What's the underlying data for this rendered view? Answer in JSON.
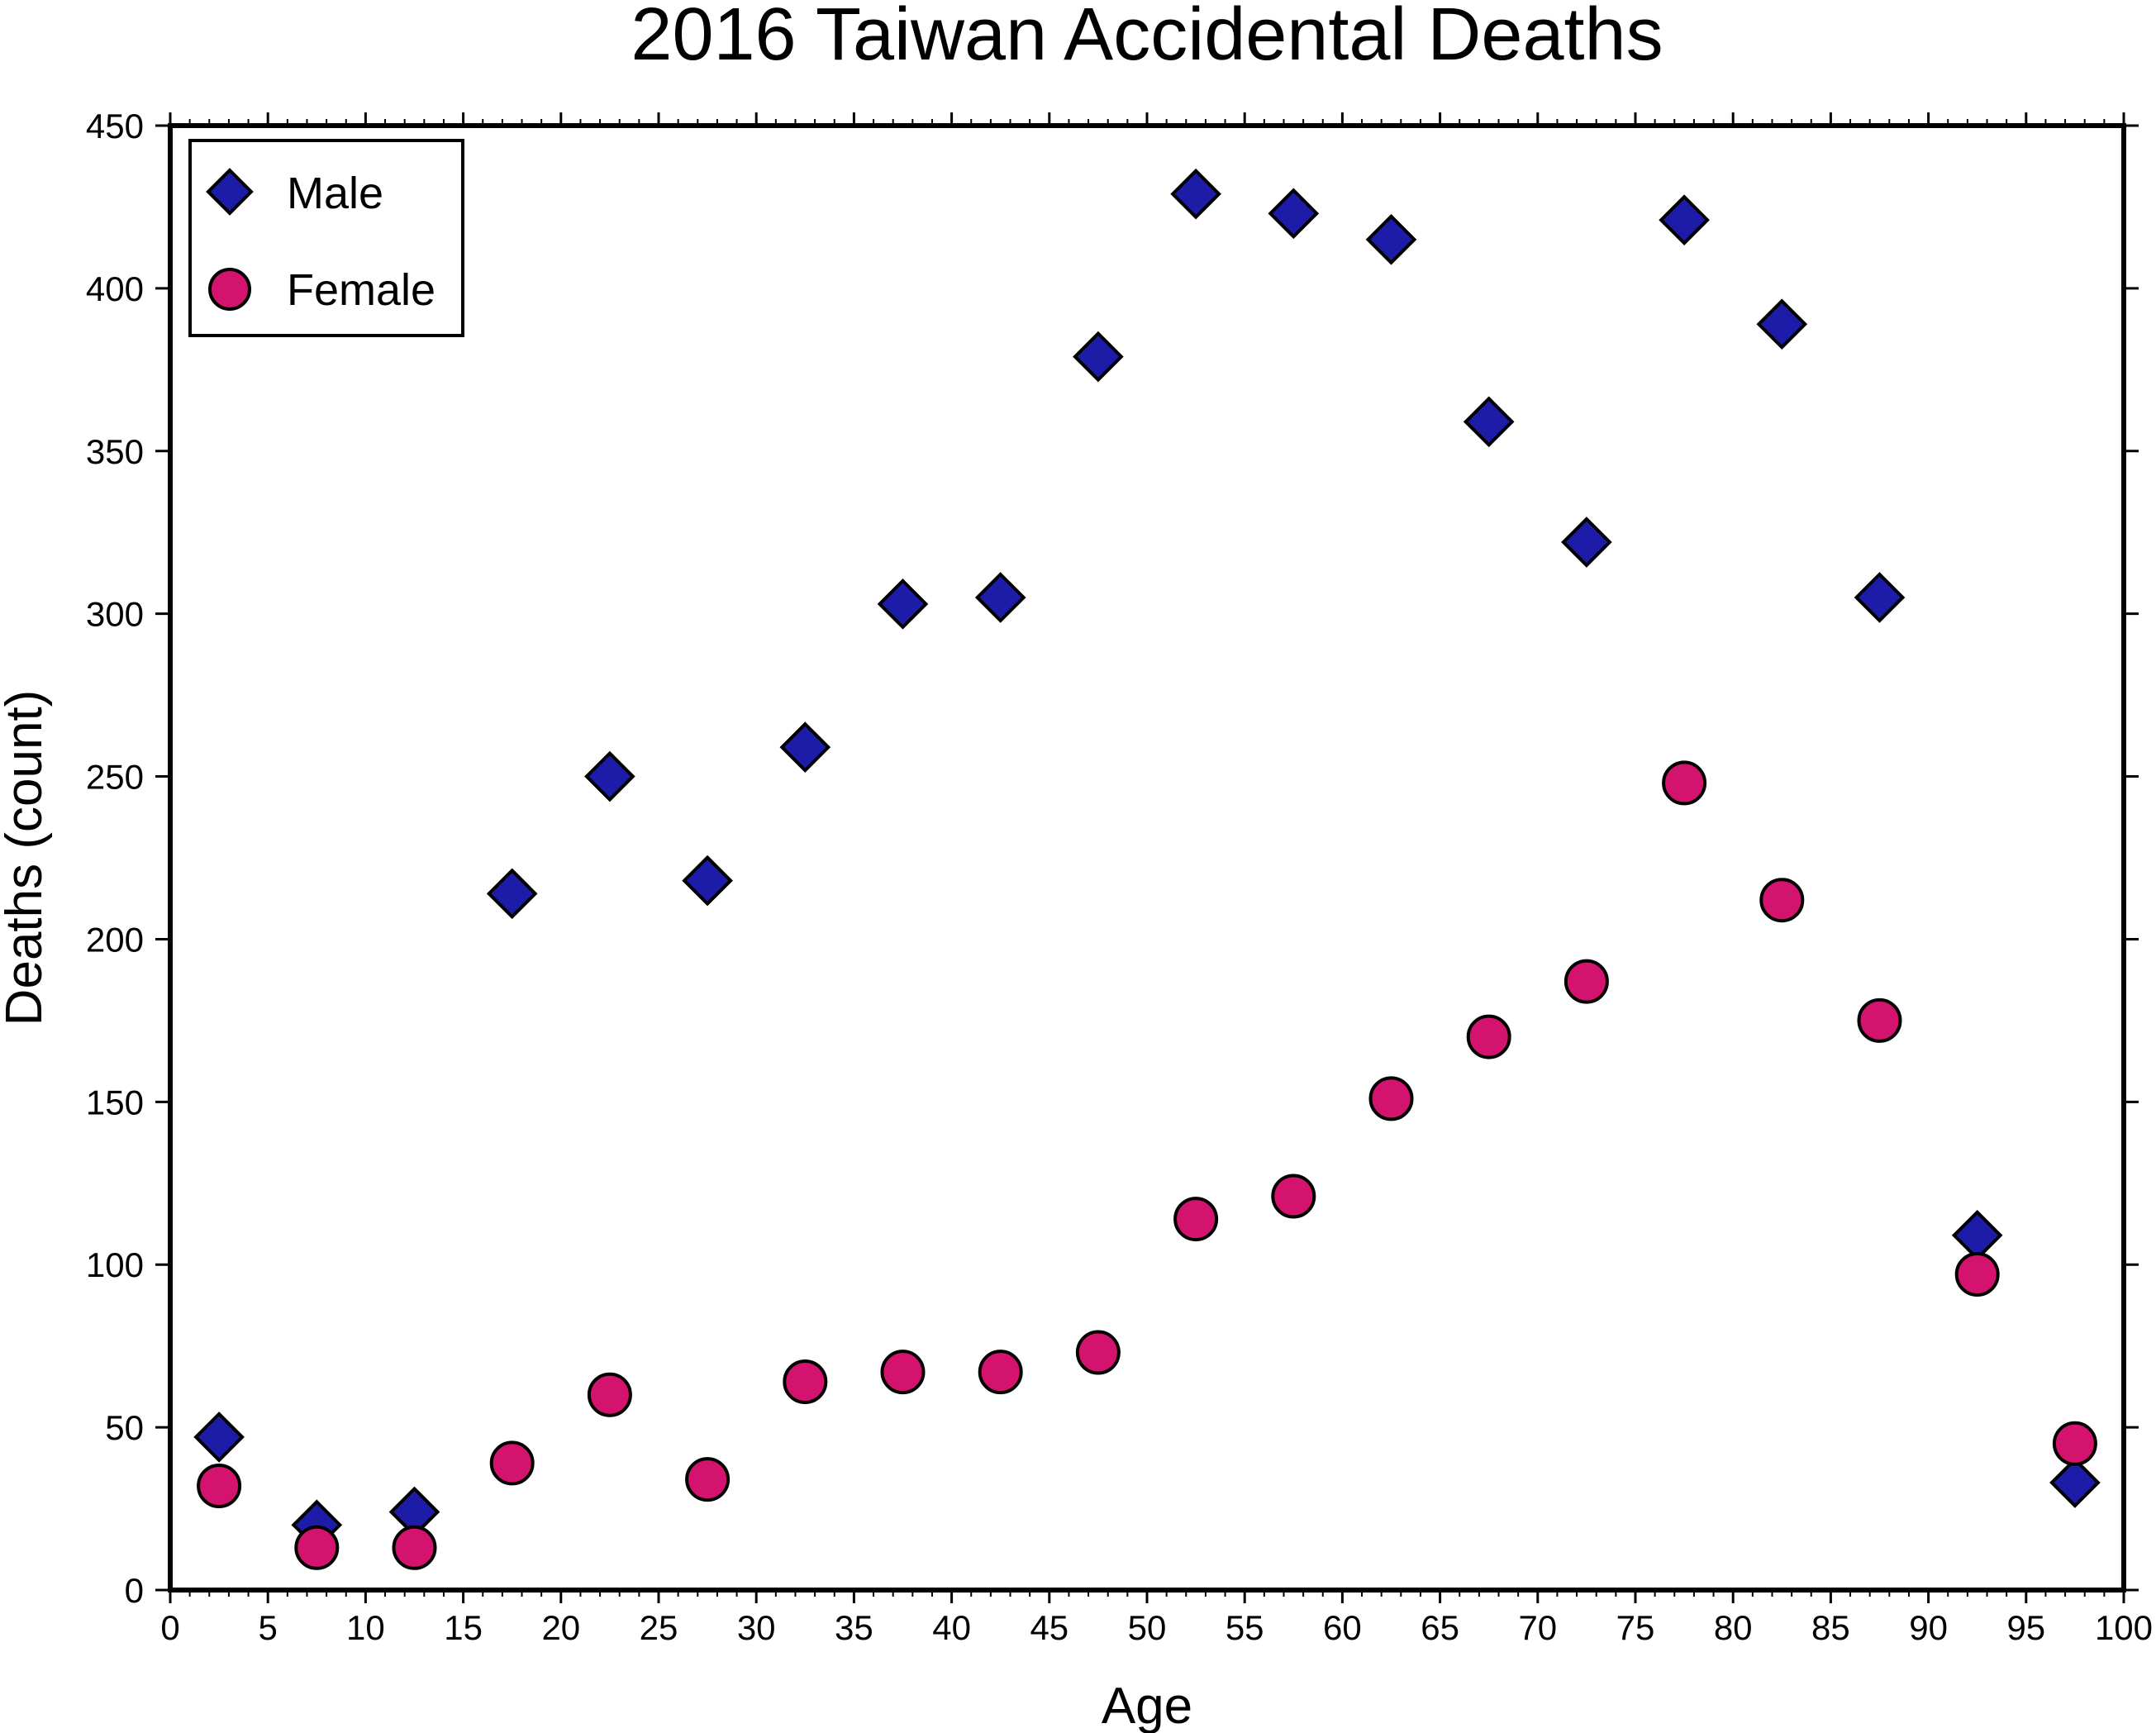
{
  "chart_data": {
    "type": "scatter",
    "title": "2016 Taiwan Accidental Deaths",
    "xlabel": "Age",
    "ylabel": "Deaths (count)",
    "xlim": [
      0,
      100
    ],
    "ylim": [
      0,
      450
    ],
    "xticks": [
      "0",
      "5",
      "10",
      "15",
      "20",
      "25",
      "30",
      "35",
      "40",
      "45",
      "50",
      "55",
      "60",
      "65",
      "70",
      "75",
      "80",
      "85",
      "90",
      "95",
      "100"
    ],
    "yticks": [
      "0",
      "50",
      "100",
      "150",
      "200",
      "250",
      "300",
      "350",
      "400",
      "450"
    ],
    "grid": false,
    "legend_position": "top-left",
    "series": [
      {
        "name": "Male",
        "marker": "diamond",
        "color": "#1c1ca8",
        "x": [
          2.5,
          7.5,
          12.5,
          17.5,
          22.5,
          27.5,
          32.5,
          37.5,
          42.5,
          47.5,
          52.5,
          57.5,
          62.5,
          67.5,
          72.5,
          77.5,
          82.5,
          87.5,
          92.5,
          97.5
        ],
        "y": [
          47,
          20,
          24,
          214,
          250,
          218,
          259,
          303,
          305,
          379,
          429,
          423,
          415,
          359,
          322,
          421,
          389,
          305,
          109,
          33
        ]
      },
      {
        "name": "Female",
        "marker": "circle",
        "color": "#d4136e",
        "x": [
          2.5,
          7.5,
          12.5,
          17.5,
          22.5,
          27.5,
          32.5,
          37.5,
          42.5,
          47.5,
          52.5,
          57.5,
          62.5,
          67.5,
          72.5,
          77.5,
          82.5,
          87.5,
          92.5,
          97.5
        ],
        "y": [
          32,
          13,
          13,
          39,
          60,
          34,
          64,
          67,
          67,
          73,
          114,
          121,
          151,
          170,
          187,
          248,
          212,
          175,
          97,
          45
        ]
      }
    ]
  }
}
